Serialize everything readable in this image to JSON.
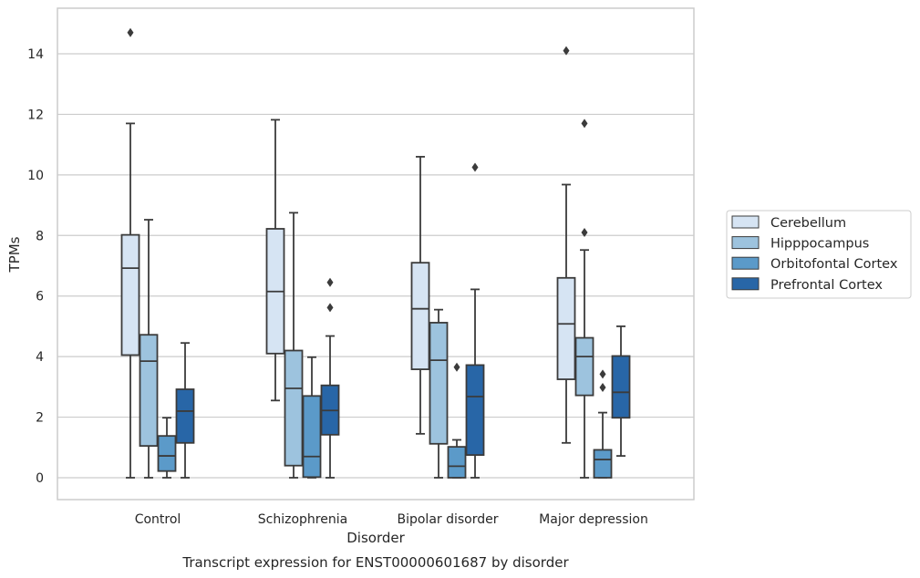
{
  "chart_data": {
    "type": "box",
    "caption": "Transcript expression for ENST00000601687 by disorder",
    "xlabel": "Disorder",
    "ylabel": "TPMs",
    "ylim": [
      -0.7,
      15.5
    ],
    "yticks": [
      0,
      2,
      4,
      6,
      8,
      10,
      12,
      14
    ],
    "grid": "horizontal",
    "legend_position": "right",
    "categories": [
      "Control",
      "Schizophrenia",
      "Bipolar disorder",
      "Major depression"
    ],
    "series": [
      {
        "name": "Cerebellum",
        "color": "#d6e4f3",
        "boxes": [
          {
            "whisker_low": 0.0,
            "q1": 4.05,
            "median": 6.92,
            "q3": 8.02,
            "whisker_high": 11.7,
            "outliers": [
              14.7
            ]
          },
          {
            "whisker_low": 2.55,
            "q1": 4.1,
            "median": 6.15,
            "q3": 8.22,
            "whisker_high": 11.82,
            "outliers": []
          },
          {
            "whisker_low": 1.45,
            "q1": 3.58,
            "median": 5.58,
            "q3": 7.1,
            "whisker_high": 10.6,
            "outliers": []
          },
          {
            "whisker_low": 1.15,
            "q1": 3.25,
            "median": 5.08,
            "q3": 6.6,
            "whisker_high": 9.68,
            "outliers": [
              14.1
            ]
          }
        ]
      },
      {
        "name": "Hipppocampus",
        "color": "#9dc3de",
        "boxes": [
          {
            "whisker_low": 0.0,
            "q1": 1.05,
            "median": 3.85,
            "q3": 4.72,
            "whisker_high": 8.52,
            "outliers": []
          },
          {
            "whisker_low": 0.0,
            "q1": 0.4,
            "median": 2.95,
            "q3": 4.2,
            "whisker_high": 8.75,
            "outliers": []
          },
          {
            "whisker_low": 0.0,
            "q1": 1.12,
            "median": 3.88,
            "q3": 5.12,
            "whisker_high": 5.55,
            "outliers": []
          },
          {
            "whisker_low": 0.0,
            "q1": 2.72,
            "median": 4.0,
            "q3": 4.62,
            "whisker_high": 7.52,
            "outliers": [
              11.7,
              8.1
            ]
          }
        ]
      },
      {
        "name": "Orbitofontal Cortex",
        "color": "#5b9ac9",
        "boxes": [
          {
            "whisker_low": 0.0,
            "q1": 0.22,
            "median": 0.72,
            "q3": 1.38,
            "whisker_high": 1.98,
            "outliers": []
          },
          {
            "whisker_low": 0.0,
            "q1": 0.02,
            "median": 0.7,
            "q3": 2.7,
            "whisker_high": 3.98,
            "outliers": []
          },
          {
            "whisker_low": 0.0,
            "q1": 0.0,
            "median": 0.38,
            "q3": 1.02,
            "whisker_high": 1.25,
            "outliers": [
              3.65
            ]
          },
          {
            "whisker_low": 0.0,
            "q1": 0.0,
            "median": 0.6,
            "q3": 0.92,
            "whisker_high": 2.15,
            "outliers": [
              3.42,
              2.98
            ]
          }
        ]
      },
      {
        "name": "Prefrontal Cortex",
        "color": "#2866a7",
        "boxes": [
          {
            "whisker_low": 0.0,
            "q1": 1.15,
            "median": 2.2,
            "q3": 2.92,
            "whisker_high": 4.45,
            "outliers": []
          },
          {
            "whisker_low": 0.0,
            "q1": 1.42,
            "median": 2.22,
            "q3": 3.05,
            "whisker_high": 4.68,
            "outliers": [
              6.45,
              5.62
            ]
          },
          {
            "whisker_low": 0.0,
            "q1": 0.75,
            "median": 2.68,
            "q3": 3.72,
            "whisker_high": 6.22,
            "outliers": [
              10.25
            ]
          },
          {
            "whisker_low": 0.72,
            "q1": 1.98,
            "median": 2.82,
            "q3": 4.02,
            "whisker_high": 5.0,
            "outliers": []
          }
        ]
      }
    ]
  }
}
